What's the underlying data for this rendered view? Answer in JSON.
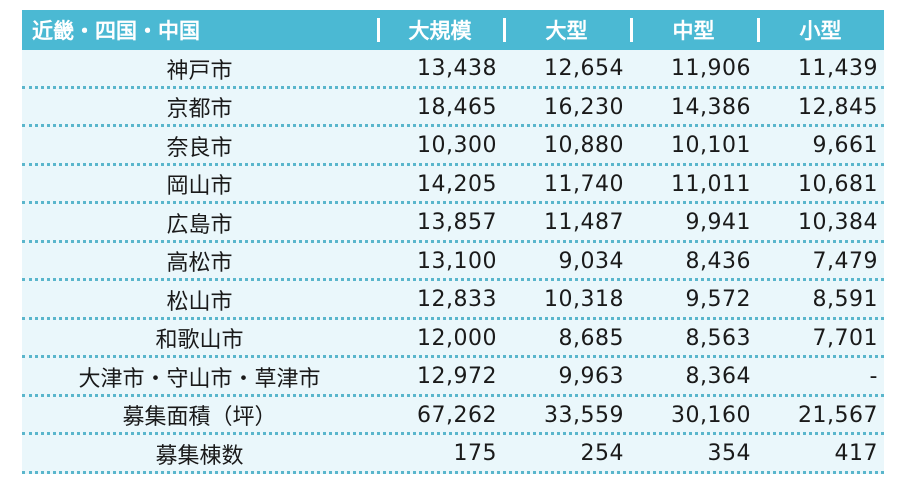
{
  "table": {
    "headers": [
      "近畿・四国・中国",
      "大規模",
      "大型",
      "中型",
      "小型"
    ],
    "rows": [
      {
        "label": "神戸市",
        "values": [
          "13,438",
          "12,654",
          "11,906",
          "11,439"
        ]
      },
      {
        "label": "京都市",
        "values": [
          "18,465",
          "16,230",
          "14,386",
          "12,845"
        ]
      },
      {
        "label": "奈良市",
        "values": [
          "10,300",
          "10,880",
          "10,101",
          "9,661"
        ]
      },
      {
        "label": "岡山市",
        "values": [
          "14,205",
          "11,740",
          "11,011",
          "10,681"
        ]
      },
      {
        "label": "広島市",
        "values": [
          "13,857",
          "11,487",
          "9,941",
          "10,384"
        ]
      },
      {
        "label": "高松市",
        "values": [
          "13,100",
          "9,034",
          "8,436",
          "7,479"
        ]
      },
      {
        "label": "松山市",
        "values": [
          "12,833",
          "10,318",
          "9,572",
          "8,591"
        ]
      },
      {
        "label": "和歌山市",
        "values": [
          "12,000",
          "8,685",
          "8,563",
          "7,701"
        ]
      },
      {
        "label": "大津市・守山市・草津市",
        "values": [
          "12,972",
          "9,963",
          "8,364",
          "-"
        ]
      },
      {
        "label": "募集面積（坪）",
        "values": [
          "67,262",
          "33,559",
          "30,160",
          "21,567"
        ]
      },
      {
        "label": "募集棟数",
        "values": [
          "175",
          "254",
          "354",
          "417"
        ]
      }
    ]
  },
  "colors": {
    "header_bg": "#4bb9d3",
    "row_bg": "#eaf7fb",
    "divider": "#5ab6cc"
  }
}
